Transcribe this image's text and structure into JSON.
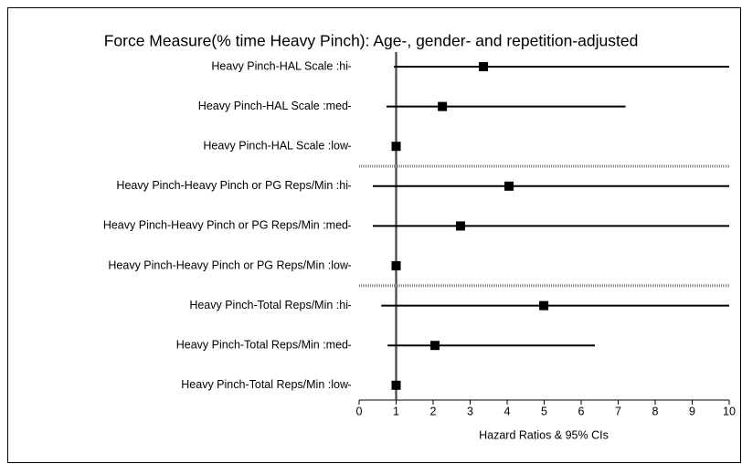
{
  "chart_data": {
    "type": "forest",
    "title": "Force Measure(% time Heavy Pinch): Age-, gender- and repetition-adjusted",
    "xlabel": "Hazard Ratios & 95% CIs",
    "categories": [
      "Heavy Pinch-HAL Scale :hi",
      "Heavy Pinch-HAL Scale :med",
      "Heavy Pinch-HAL Scale :low",
      "Heavy Pinch-Heavy Pinch or PG Reps/Min :hi",
      "Heavy Pinch-Heavy Pinch or PG Reps/Min :med",
      "Heavy Pinch-Heavy Pinch or PG Reps/Min :low",
      "Heavy Pinch-Total Reps/Min :hi",
      "Heavy Pinch-Total Reps/Min :med",
      "Heavy Pinch-Total Reps/Min :low"
    ],
    "values": [
      3.36,
      2.25,
      1,
      4.05,
      2.74,
      1,
      4.99,
      2.05,
      1
    ],
    "lower": [
      0.94,
      0.74,
      null,
      0.37,
      0.37,
      null,
      0.6,
      0.77,
      null
    ],
    "upper": [
      10,
      7.2,
      null,
      10,
      10,
      null,
      10,
      6.37,
      null
    ],
    "color": "#000000",
    "reference_line": 1,
    "xlim": [
      0,
      10
    ],
    "xticks": [
      0,
      1,
      2,
      3,
      4,
      5,
      6,
      7,
      8,
      9,
      10
    ]
  }
}
